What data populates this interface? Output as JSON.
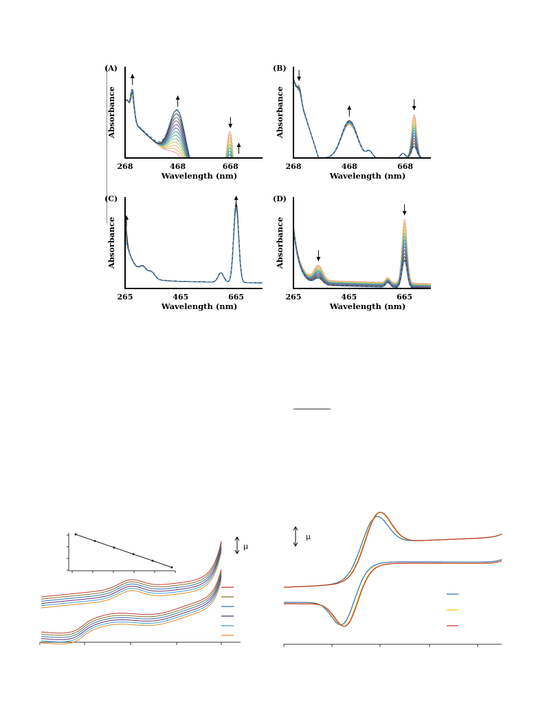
{
  "figure_uv": {
    "panels": [
      {
        "label": "(A)",
        "xlabel": "Wavelength (nm)",
        "ylabel": "Absorbance",
        "xticks": [
          "268",
          "468",
          "668"
        ],
        "arrows": [
          {
            "at_nm": 296,
            "direction": "up"
          },
          {
            "at_nm": 468,
            "direction": "up"
          },
          {
            "at_nm": 668,
            "direction": "down"
          },
          {
            "at_nm": 700,
            "direction": "up"
          }
        ]
      },
      {
        "label": "(B)",
        "xlabel": "Wavelength (nm)",
        "ylabel": "Absorbance",
        "xticks": [
          "268",
          "468",
          "668"
        ],
        "arrows": [
          {
            "at_nm": 288,
            "direction": "down"
          },
          {
            "at_nm": 468,
            "direction": "up"
          },
          {
            "at_nm": 700,
            "direction": "down"
          }
        ]
      },
      {
        "label": "(C)",
        "xlabel": "Wavelength (nm)",
        "ylabel": "Absorbance",
        "xticks": [
          "265",
          "465",
          "665"
        ],
        "arrows": [
          {
            "at_nm": 270,
            "direction": "up"
          },
          {
            "at_nm": 665,
            "direction": "up"
          }
        ]
      },
      {
        "label": "(D)",
        "xlabel": "Wavelength (nm)",
        "ylabel": "Absorbance",
        "xticks": [
          "265",
          "465",
          "665"
        ],
        "arrows": [
          {
            "at_nm": 355,
            "direction": "down"
          },
          {
            "at_nm": 665,
            "direction": "down"
          }
        ]
      }
    ],
    "series_colors": [
      "#f5a0a0",
      "#e8b080",
      "#f0c060",
      "#c8c870",
      "#90c080",
      "#60b090",
      "#50a0b0",
      "#5080c0",
      "#7070b0",
      "#806080",
      "#707070",
      "#505050",
      "#303030"
    ],
    "dashed_color": "#4a90d0"
  },
  "figure_cv_left": {
    "series_colors": [
      "#c0392b",
      "#7d6b2a",
      "#2e6da4",
      "#5b2c6f",
      "#3a9ad9",
      "#e08a1e"
    ],
    "has_inset": true,
    "unit_symbol": "μ"
  },
  "figure_cv_right": {
    "series_colors": [
      "#2e6da4",
      "#f1c40f",
      "#c0392b"
    ],
    "unit_symbol": "μ"
  }
}
